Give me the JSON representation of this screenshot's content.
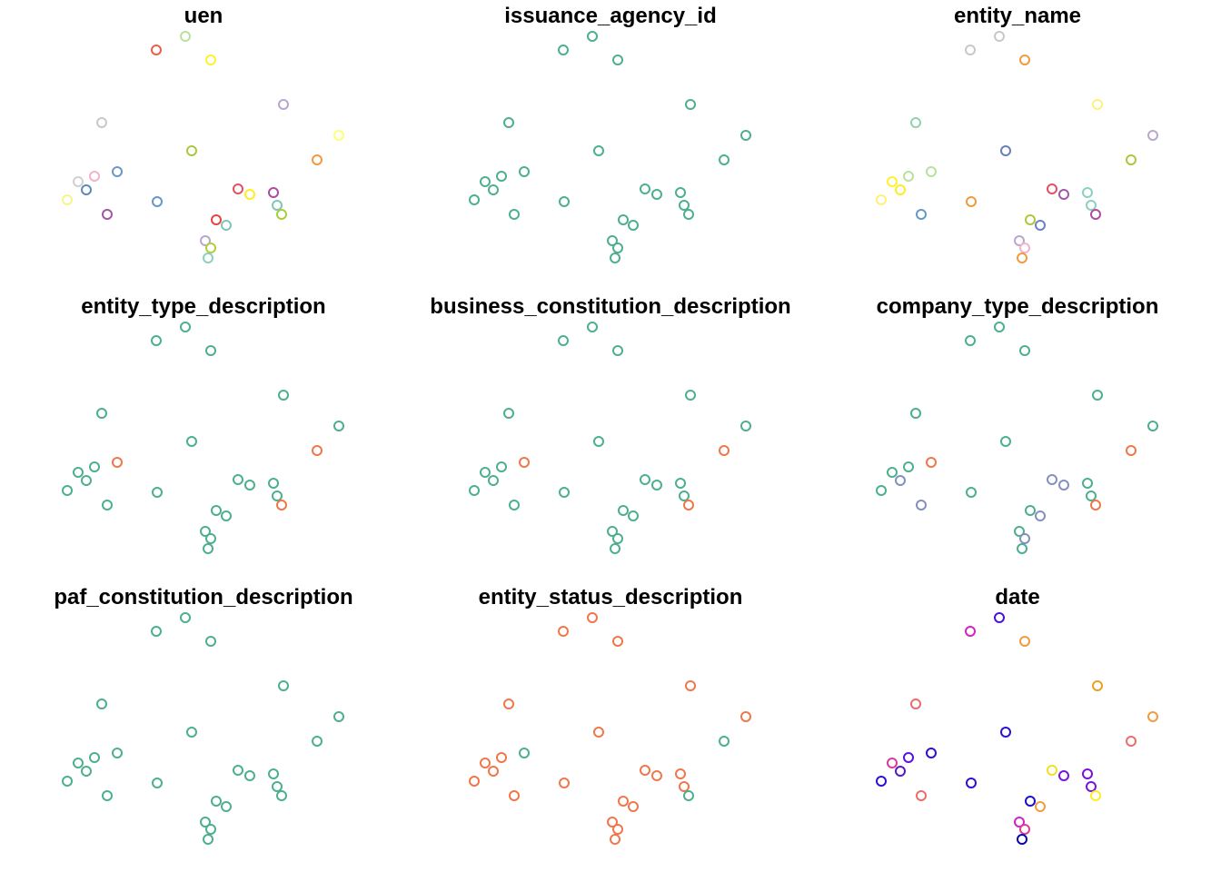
{
  "chart_data": {
    "type": "scatter",
    "layout": "small-multiples-3x3",
    "axes": "none",
    "grid": false,
    "legend": "none",
    "points": [
      {
        "x": 172,
        "y": 55
      },
      {
        "x": 204,
        "y": 40
      },
      {
        "x": 232,
        "y": 66
      },
      {
        "x": 312,
        "y": 115
      },
      {
        "x": 112,
        "y": 135
      },
      {
        "x": 373,
        "y": 149
      },
      {
        "x": 211,
        "y": 166
      },
      {
        "x": 349,
        "y": 176
      },
      {
        "x": 129,
        "y": 189
      },
      {
        "x": 104,
        "y": 194
      },
      {
        "x": 86,
        "y": 200
      },
      {
        "x": 95,
        "y": 209
      },
      {
        "x": 262,
        "y": 208
      },
      {
        "x": 275,
        "y": 214
      },
      {
        "x": 301,
        "y": 212
      },
      {
        "x": 74,
        "y": 220
      },
      {
        "x": 173,
        "y": 222
      },
      {
        "x": 305,
        "y": 226
      },
      {
        "x": 118,
        "y": 236
      },
      {
        "x": 310,
        "y": 236
      },
      {
        "x": 238,
        "y": 242
      },
      {
        "x": 249,
        "y": 248
      },
      {
        "x": 226,
        "y": 265
      },
      {
        "x": 232,
        "y": 273
      },
      {
        "x": 229,
        "y": 284
      }
    ],
    "panels": [
      {
        "title": "uen",
        "colors": [
          "#E8604C",
          "#B8E0A0",
          "#FFF12A",
          "#B7A7CF",
          "#C8C8C8",
          "#FFFF77",
          "#A9C93B",
          "#F39A3C",
          "#6A97C6",
          "#F2B2CD",
          "#D0D0D0",
          "#5D88B8",
          "#E35063",
          "#FDEE23",
          "#B04AA0",
          "#F7F58A",
          "#6598C6",
          "#7FC6B6",
          "#9F57A6",
          "#A7CF3B",
          "#E4463C",
          "#7DC6B8",
          "#B7A7CF",
          "#B2CF38",
          "#8BD0C0"
        ]
      },
      {
        "title": "issuance_agency_id",
        "colors": [
          "#4CAF8D",
          "#4CAF8D",
          "#4CAF8D",
          "#4CAF8D",
          "#4CAF8D",
          "#4CAF8D",
          "#4CAF8D",
          "#4CAF8D",
          "#4CAF8D",
          "#4CAF8D",
          "#4CAF8D",
          "#4CAF8D",
          "#4CAF8D",
          "#4CAF8D",
          "#4CAF8D",
          "#4CAF8D",
          "#4CAF8D",
          "#4CAF8D",
          "#4CAF8D",
          "#4CAF8D",
          "#4CAF8D",
          "#4CAF8D",
          "#4CAF8D",
          "#4CAF8D",
          "#4CAF8D"
        ]
      },
      {
        "title": "entity_name",
        "colors": [
          "#C8C8C8",
          "#C8C8C8",
          "#F39A3C",
          "#FFF27A",
          "#8FD4AC",
          "#B7A7CF",
          "#6A7FB6",
          "#A9C93B",
          "#B8E0A0",
          "#B8E0A0",
          "#FFF12A",
          "#FDEE23",
          "#E35063",
          "#9F57A6",
          "#8BD0C0",
          "#FFF17A",
          "#F39A3C",
          "#8BD0C0",
          "#6598C6",
          "#B04AA0",
          "#A9C93B",
          "#6A80C6",
          "#B7A7CF",
          "#F2B2CD",
          "#F39A3C"
        ]
      },
      {
        "title": "entity_type_description",
        "colors": [
          "#4CAF8D",
          "#4CAF8D",
          "#4CAF8D",
          "#4CAF8D",
          "#4CAF8D",
          "#4CAF8D",
          "#4CAF8D",
          "#F0764B",
          "#F0764B",
          "#4CAF8D",
          "#4CAF8D",
          "#4CAF8D",
          "#4CAF8D",
          "#4CAF8D",
          "#4CAF8D",
          "#4CAF8D",
          "#4CAF8D",
          "#4CAF8D",
          "#4CAF8D",
          "#F0764B",
          "#4CAF8D",
          "#4CAF8D",
          "#4CAF8D",
          "#4CAF8D",
          "#4CAF8D"
        ]
      },
      {
        "title": "business_constitution_description",
        "colors": [
          "#4CAF8D",
          "#4CAF8D",
          "#4CAF8D",
          "#4CAF8D",
          "#4CAF8D",
          "#4CAF8D",
          "#4CAF8D",
          "#F0764B",
          "#F0764B",
          "#4CAF8D",
          "#4CAF8D",
          "#4CAF8D",
          "#4CAF8D",
          "#4CAF8D",
          "#4CAF8D",
          "#4CAF8D",
          "#4CAF8D",
          "#4CAF8D",
          "#4CAF8D",
          "#F0764B",
          "#4CAF8D",
          "#4CAF8D",
          "#4CAF8D",
          "#4CAF8D",
          "#4CAF8D"
        ]
      },
      {
        "title": "company_type_description",
        "colors": [
          "#4CAF8D",
          "#4CAF8D",
          "#4CAF8D",
          "#4CAF8D",
          "#4CAF8D",
          "#4CAF8D",
          "#4CAF8D",
          "#F0764B",
          "#F0764B",
          "#4CAF8D",
          "#4CAF8D",
          "#8390BF",
          "#8390BF",
          "#8390BF",
          "#4CAF8D",
          "#4CAF8D",
          "#4CAF8D",
          "#4CAF8D",
          "#8390BF",
          "#F0764B",
          "#4CAF8D",
          "#8390BF",
          "#4CAF8D",
          "#8390BF",
          "#4CAF8D"
        ]
      },
      {
        "title": "paf_constitution_description",
        "colors": [
          "#4CAF8D",
          "#4CAF8D",
          "#4CAF8D",
          "#4CAF8D",
          "#4CAF8D",
          "#4CAF8D",
          "#4CAF8D",
          "#4CAF8D",
          "#4CAF8D",
          "#4CAF8D",
          "#4CAF8D",
          "#4CAF8D",
          "#4CAF8D",
          "#4CAF8D",
          "#4CAF8D",
          "#4CAF8D",
          "#4CAF8D",
          "#4CAF8D",
          "#4CAF8D",
          "#4CAF8D",
          "#4CAF8D",
          "#4CAF8D",
          "#4CAF8D",
          "#4CAF8D",
          "#4CAF8D"
        ]
      },
      {
        "title": "entity_status_description",
        "colors": [
          "#F0764B",
          "#F0764B",
          "#F0764B",
          "#F0764B",
          "#F0764B",
          "#F0764B",
          "#F0764B",
          "#4CAF8D",
          "#4CAF8D",
          "#F0764B",
          "#F0764B",
          "#F0764B",
          "#F0764B",
          "#F0764B",
          "#F0764B",
          "#F0764B",
          "#F0764B",
          "#F0764B",
          "#F0764B",
          "#4CAF8D",
          "#F0764B",
          "#F0764B",
          "#F0764B",
          "#F0764B",
          "#F0764B"
        ]
      },
      {
        "title": "date",
        "colors": [
          "#D320C8",
          "#4B12D8",
          "#F39A3C",
          "#E8A21F",
          "#EE6B6B",
          "#F39A3C",
          "#2A10D8",
          "#EE6B6B",
          "#2A10D8",
          "#5A12D8",
          "#D93A9E",
          "#5A12D8",
          "#F2E020",
          "#7A12D8",
          "#7A12D8",
          "#2A10D8",
          "#2A10D8",
          "#7A12D8",
          "#EE6B6B",
          "#FDEE23",
          "#1A10C8",
          "#F39A3C",
          "#D320C8",
          "#E03A9E",
          "#0A08A8"
        ]
      }
    ]
  }
}
